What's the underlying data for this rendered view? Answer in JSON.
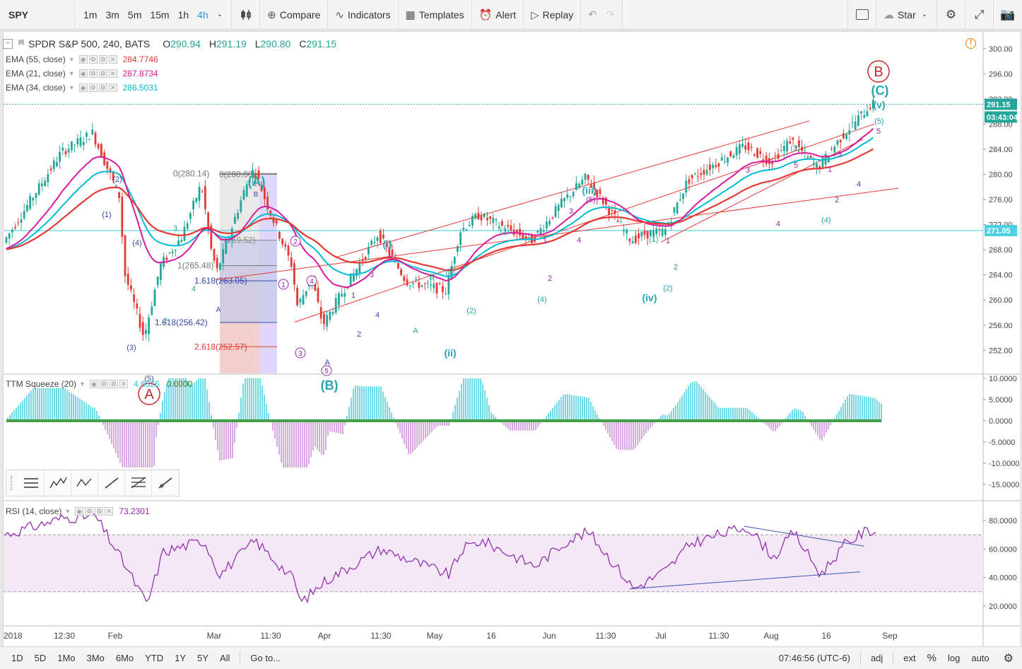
{
  "toolbar": {
    "symbol": "SPY",
    "intervals": [
      "1m",
      "3m",
      "5m",
      "15m",
      "1h",
      "4h"
    ],
    "active_interval": "4h",
    "compare": "Compare",
    "indicators": "Indicators",
    "templates": "Templates",
    "alert": "Alert",
    "replay": "Replay",
    "star": "Star"
  },
  "main": {
    "title": "SPDR S&P 500, 240, BATS",
    "ohlc": {
      "o_label": "O",
      "o": "290.94",
      "h_label": "H",
      "h": "291.19",
      "l_label": "L",
      "l": "290.80",
      "c_label": "C",
      "c": "291.15"
    },
    "ema": [
      {
        "label": "EMA (55, close)",
        "value": "284.7746",
        "color": "#e53935"
      },
      {
        "label": "EMA (21, close)",
        "value": "287.8734",
        "color": "#d81b9b"
      },
      {
        "label": "EMA (34, close)",
        "value": "286.5031",
        "color": "#00bcd4"
      }
    ]
  },
  "ttm": {
    "label": "TTM Squeeze (20)",
    "value": "4.6326",
    "value2": "0.0000"
  },
  "rsi": {
    "label": "RSI (14, close)",
    "value": "73.2301"
  },
  "bottom": {
    "ranges": [
      "1D",
      "5D",
      "1Mo",
      "3Mo",
      "6Mo",
      "YTD",
      "1Y",
      "5Y",
      "All"
    ],
    "goto": "Go to...",
    "time": "07:46:56 (UTC-6)",
    "adj": "adj",
    "ext": "ext",
    "pct": "%",
    "log": "log",
    "auto": "auto"
  },
  "chart_data": {
    "type": "candlestick",
    "price_axis": {
      "ticks": [
        252,
        256,
        260,
        264,
        268,
        272,
        276,
        280,
        284,
        288,
        292,
        296,
        300
      ],
      "ylim": [
        249,
        302
      ],
      "current_price": "291.15",
      "countdown": "03:43:04",
      "horizontal_level": "271.05"
    },
    "time_axis": {
      "labels": [
        "2018",
        "12:30",
        "Feb",
        "Mar",
        "11:30",
        "Apr",
        "11:30",
        "May",
        "16",
        "Jun",
        "11:30",
        "Jul",
        "11:30",
        "Aug",
        "16",
        "Sep"
      ]
    },
    "close_path": [
      [
        "2018",
        268.8
      ],
      [
        "12:30",
        283.5
      ],
      [
        "Jan end",
        286.6
      ],
      [
        "Feb 02",
        276.5
      ],
      [
        "Feb 05",
        264.0
      ],
      [
        "Feb 08",
        257.5
      ],
      [
        "Feb 09",
        254.0
      ],
      [
        "Feb 13",
        265.5
      ],
      [
        "Feb 20",
        270.0
      ],
      [
        "Feb 26",
        278.5
      ],
      [
        "Mar 01",
        268.0
      ],
      [
        "Mar 02",
        264.5
      ],
      [
        "Mar 09",
        277.5
      ],
      [
        "Mar 12",
        280.5
      ],
      [
        "Mar 13",
        280.0
      ],
      [
        "11:30",
        275.5
      ],
      [
        "Mar 22",
        265.5
      ],
      [
        "Mar 23",
        259.0
      ],
      [
        "Mar 29",
        263.5
      ],
      [
        "Apr 02",
        256.0
      ],
      [
        "Apr 06",
        259.5
      ],
      [
        "Apr 18",
        270.5
      ],
      [
        "Apr 24",
        263.0
      ],
      [
        "May 03",
        261.5
      ],
      [
        "May 10",
        271.0
      ],
      [
        "May 14",
        273.5
      ],
      [
        "May 29",
        269.5
      ],
      [
        "Jun 05",
        276.0
      ],
      [
        "Jun 13",
        279.5
      ],
      [
        "Jun 25",
        269.5
      ],
      [
        "Jun 28",
        270.5
      ],
      [
        "Jul 02",
        271.0
      ],
      [
        "Jul 10",
        279.0
      ],
      [
        "Jul 25",
        284.5
      ],
      [
        "Aug 02",
        282.0
      ],
      [
        "Aug 08",
        285.5
      ],
      [
        "Aug 15",
        281.0
      ],
      [
        "Aug 21",
        286.0
      ],
      [
        "Aug 27",
        289.5
      ],
      [
        "Aug 29",
        291.15
      ]
    ],
    "fib": {
      "levels": [
        {
          "label": "0(280.14)",
          "value": 280.14
        },
        {
          "label": "0(280.00)",
          "value": 280.0
        },
        {
          "label": "(269.52)",
          "value": 269.52
        },
        {
          "label": "1(265.48)",
          "value": 265.48
        },
        {
          "label": "1.618(263.05)",
          "value": 263.05
        },
        {
          "label": "1.618(256.42)",
          "value": 256.42
        },
        {
          "label": "2.618(252.57)",
          "value": 252.57
        }
      ]
    },
    "wave_labels": [
      "(A)",
      "(B)",
      "(C)",
      "A",
      "B",
      "(i)",
      "(ii)",
      "(iii)",
      "(iv)",
      "(v)",
      "(1)",
      "(2)",
      "(3)",
      "(4)",
      "(5)",
      "1",
      "2",
      "3",
      "4",
      "5"
    ],
    "ttm_ticks": [
      "10.0000",
      "5.0000",
      "0.0000",
      "-5.0000",
      "-10.0000",
      "-15.0000"
    ],
    "rsi_ticks": [
      "80.0000",
      "60.0000",
      "40.0000",
      "20.0000"
    ],
    "rsi_bands": [
      70,
      30
    ],
    "rsi_path": [
      [
        "2018",
        70
      ],
      [
        "12:30",
        82
      ],
      [
        "Jan end",
        83
      ],
      [
        "Feb 02",
        52
      ],
      [
        "Feb 09",
        21
      ],
      [
        "Feb 13",
        58
      ],
      [
        "Feb 26",
        66
      ],
      [
        "Mar 02",
        42
      ],
      [
        "Mar 12",
        66
      ],
      [
        "Mar 22",
        38
      ],
      [
        "Mar 23",
        22
      ],
      [
        "Apr 02",
        38
      ],
      [
        "Apr 18",
        60
      ],
      [
        "May 03",
        42
      ],
      [
        "May 10",
        60
      ],
      [
        "May 14",
        66
      ],
      [
        "May 29",
        48
      ],
      [
        "Jun 05",
        66
      ],
      [
        "Jun 13",
        72
      ],
      [
        "Jun 25",
        32
      ],
      [
        "Jul 02",
        46
      ],
      [
        "Jul 10",
        64
      ],
      [
        "Jul 25",
        76
      ],
      [
        "Aug 02",
        54
      ],
      [
        "Aug 08",
        72
      ],
      [
        "Aug 15",
        42
      ],
      [
        "Aug 21",
        63
      ],
      [
        "Aug 27",
        72
      ],
      [
        "Aug 29",
        73.2
      ]
    ]
  }
}
